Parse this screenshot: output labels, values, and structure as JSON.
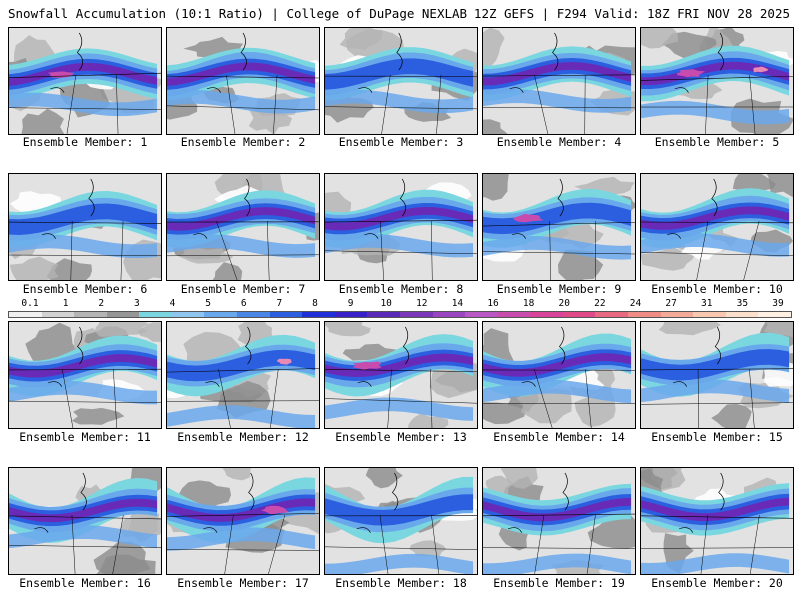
{
  "header": {
    "title": "Snowfall Accumulation (10:1 Ratio) | College of DuPage NEXLAB",
    "info": "12Z GEFS | F294 Valid: 18Z FRI NOV 28 2025"
  },
  "members": [
    "Ensemble Member: 1",
    "Ensemble Member: 2",
    "Ensemble Member: 3",
    "Ensemble Member: 4",
    "Ensemble Member: 5",
    "Ensemble Member: 6",
    "Ensemble Member: 7",
    "Ensemble Member: 8",
    "Ensemble Member: 9",
    "Ensemble Member: 10",
    "Ensemble Member: 11",
    "Ensemble Member: 12",
    "Ensemble Member: 13",
    "Ensemble Member: 14",
    "Ensemble Member: 15",
    "Ensemble Member: 16",
    "Ensemble Member: 17",
    "Ensemble Member: 18",
    "Ensemble Member: 19",
    "Ensemble Member: 20"
  ],
  "colorbar": {
    "labels": [
      "0.1",
      "1",
      "2",
      "3",
      "4",
      "5",
      "6",
      "7",
      "8",
      "9",
      "10",
      "12",
      "14",
      "16",
      "18",
      "20",
      "22",
      "24",
      "27",
      "31",
      "35",
      "39"
    ],
    "colors": [
      "#f0f0f0",
      "#d2d2d2",
      "#b4b4b4",
      "#969696",
      "#7ad7e0",
      "#8ec6f0",
      "#6aa8ec",
      "#4a86e6",
      "#2c5ee0",
      "#2030d8",
      "#3a20c8",
      "#5a2ab8",
      "#7a38b8",
      "#9a46c0",
      "#b858c4",
      "#c84cae",
      "#d8449a",
      "#e04a88",
      "#e86a82",
      "#f08c86",
      "#f4aa98",
      "#f8c8b0",
      "#fce0cc",
      "#fff0e4"
    ]
  },
  "map_colors": {
    "light_gray": "#e2e2e2",
    "mid_gray": "#b4b4b4",
    "dark_gray": "#8c8c8c",
    "cyan": "#7ad7e0",
    "light_blue": "#6aa8ec",
    "blue": "#2c5ee0",
    "purple": "#6a2ab8",
    "magenta": "#c84cae",
    "pink": "#e88ab4"
  }
}
